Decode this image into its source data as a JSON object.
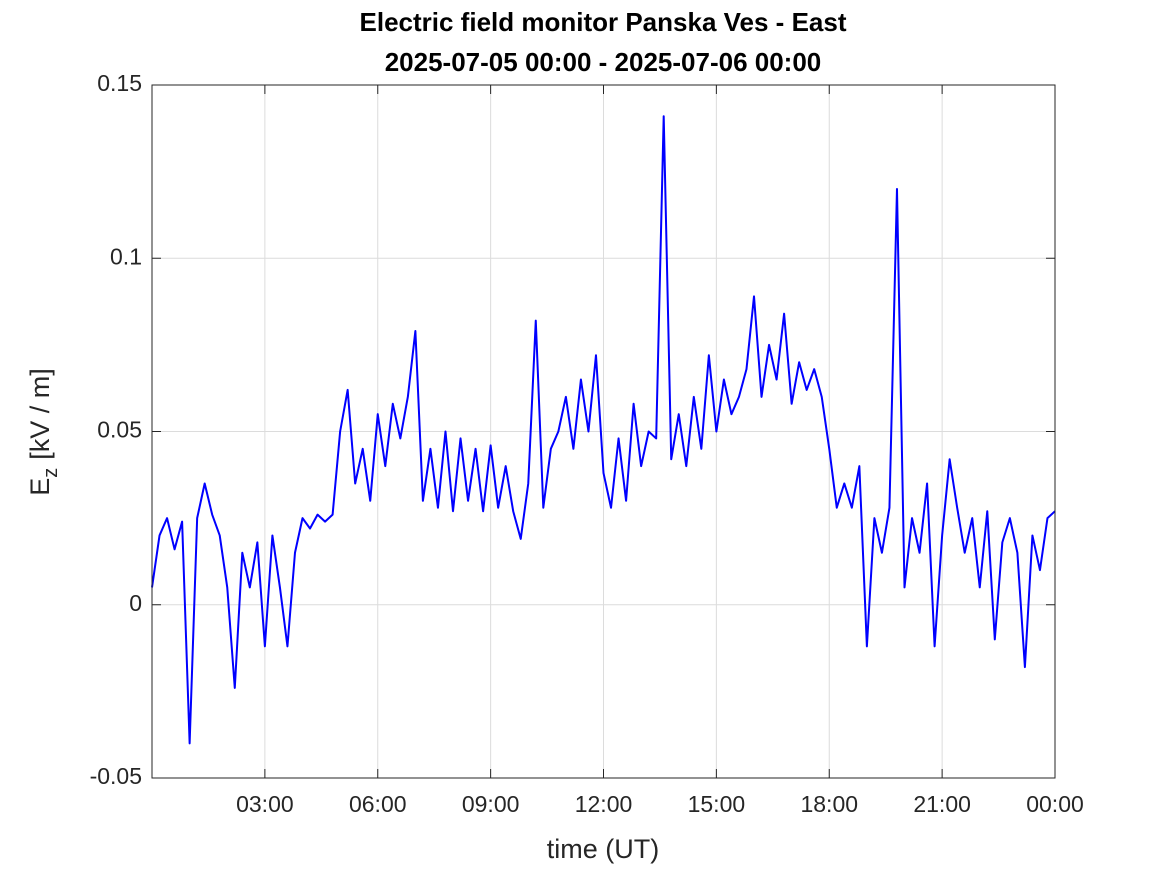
{
  "chart_data": {
    "type": "line",
    "title": "Electric field monitor Panska Ves - East",
    "subtitle": "2025-07-05 00:00 - 2025-07-06 00:00",
    "xlabel": "time (UT)",
    "ylabel": {
      "symbol": "E",
      "subscript": "z",
      "unit": "[kV / m]"
    },
    "color": "#0000ff",
    "grid": true,
    "xlim": [
      0,
      24
    ],
    "xticks": [
      {
        "value": 3,
        "label": "03:00"
      },
      {
        "value": 6,
        "label": "06:00"
      },
      {
        "value": 9,
        "label": "09:00"
      },
      {
        "value": 12,
        "label": "12:00"
      },
      {
        "value": 15,
        "label": "15:00"
      },
      {
        "value": 18,
        "label": "18:00"
      },
      {
        "value": 21,
        "label": "21:00"
      },
      {
        "value": 24,
        "label": "00:00"
      }
    ],
    "ylim": [
      -0.05,
      0.15
    ],
    "yticks": [
      -0.05,
      0,
      0.05,
      0.1,
      0.15
    ],
    "x": [
      0,
      0.2,
      0.4,
      0.6,
      0.8,
      1,
      1.2,
      1.4,
      1.6,
      1.8,
      2,
      2.2,
      2.4,
      2.6,
      2.8,
      3,
      3.2,
      3.4,
      3.6,
      3.8,
      4,
      4.2,
      4.4,
      4.6,
      4.8,
      5,
      5.2,
      5.4,
      5.6,
      5.8,
      6,
      6.2,
      6.4,
      6.6,
      6.8,
      7,
      7.2,
      7.4,
      7.6,
      7.8,
      8,
      8.2,
      8.4,
      8.6,
      8.8,
      9,
      9.2,
      9.4,
      9.6,
      9.8,
      10,
      10.2,
      10.4,
      10.6,
      10.8,
      11,
      11.2,
      11.4,
      11.6,
      11.8,
      12,
      12.2,
      12.4,
      12.6,
      12.8,
      13,
      13.2,
      13.4,
      13.6,
      13.8,
      14,
      14.2,
      14.4,
      14.6,
      14.8,
      15,
      15.2,
      15.4,
      15.6,
      15.8,
      16,
      16.2,
      16.4,
      16.6,
      16.8,
      17,
      17.2,
      17.4,
      17.6,
      17.8,
      18,
      18.2,
      18.4,
      18.6,
      18.8,
      19,
      19.2,
      19.4,
      19.6,
      19.8,
      20,
      20.2,
      20.4,
      20.6,
      20.8,
      21,
      21.2,
      21.4,
      21.6,
      21.8,
      22,
      22.2,
      22.4,
      22.6,
      22.8,
      23,
      23.2,
      23.4,
      23.6,
      23.8,
      24
    ],
    "values": [
      0.005,
      0.02,
      0.025,
      0.016,
      0.024,
      -0.04,
      0.025,
      0.035,
      0.026,
      0.02,
      0.005,
      -0.024,
      0.015,
      0.005,
      0.018,
      -0.012,
      0.02,
      0.005,
      -0.012,
      0.015,
      0.025,
      0.022,
      0.026,
      0.024,
      0.026,
      0.05,
      0.062,
      0.035,
      0.045,
      0.03,
      0.055,
      0.04,
      0.058,
      0.048,
      0.06,
      0.079,
      0.03,
      0.045,
      0.028,
      0.05,
      0.027,
      0.048,
      0.03,
      0.045,
      0.027,
      0.046,
      0.028,
      0.04,
      0.027,
      0.019,
      0.035,
      0.082,
      0.028,
      0.045,
      0.05,
      0.06,
      0.045,
      0.065,
      0.05,
      0.072,
      0.038,
      0.028,
      0.048,
      0.03,
      0.058,
      0.04,
      0.05,
      0.048,
      0.141,
      0.042,
      0.055,
      0.04,
      0.06,
      0.045,
      0.072,
      0.05,
      0.065,
      0.055,
      0.06,
      0.068,
      0.089,
      0.06,
      0.075,
      0.065,
      0.084,
      0.058,
      0.07,
      0.062,
      0.068,
      0.06,
      0.045,
      0.028,
      0.035,
      0.028,
      0.04,
      -0.012,
      0.025,
      0.015,
      0.028,
      0.12,
      0.005,
      0.025,
      0.015,
      0.035,
      -0.012,
      0.02,
      0.042,
      0.028,
      0.015,
      0.025,
      0.005,
      0.027,
      -0.01,
      0.018,
      0.025,
      0.015,
      -0.018,
      0.02,
      0.01,
      0.025,
      0.027
    ]
  }
}
